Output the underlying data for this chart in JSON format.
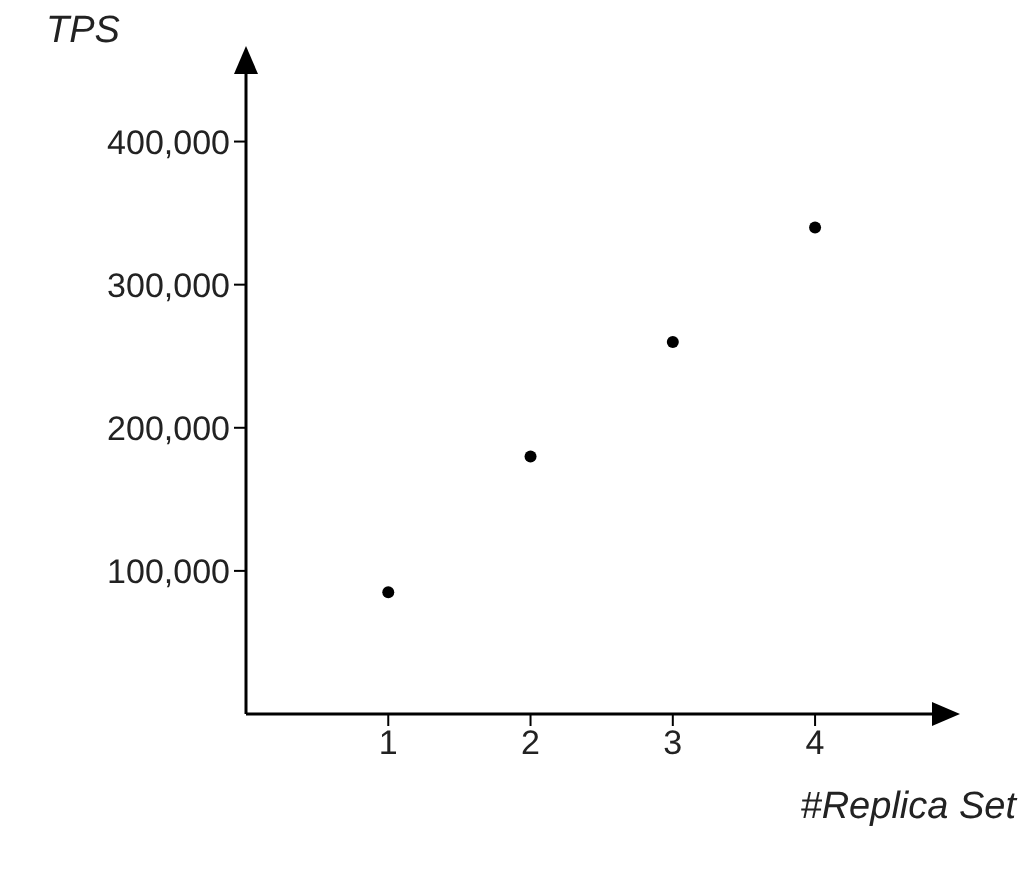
{
  "chart_data": {
    "type": "scatter",
    "xlabel": "#Replica Set",
    "ylabel": "TPS",
    "x": [
      1,
      2,
      3,
      4
    ],
    "series": [
      {
        "color": "#000000",
        "values": [
          85000,
          180000,
          260000,
          340000
        ]
      }
    ],
    "xlim": [
      0,
      4.85
    ],
    "xticks": [
      1,
      2,
      3,
      4
    ],
    "ylim": [
      0,
      450000
    ],
    "yticks": [
      {
        "value": 100000,
        "label": "100,000"
      },
      {
        "value": 200000,
        "label": "200,000"
      },
      {
        "value": 300000,
        "label": "300,000"
      },
      {
        "value": 400000,
        "label": "400,000"
      }
    ],
    "marker": "circle",
    "grid": false,
    "legend": false
  }
}
